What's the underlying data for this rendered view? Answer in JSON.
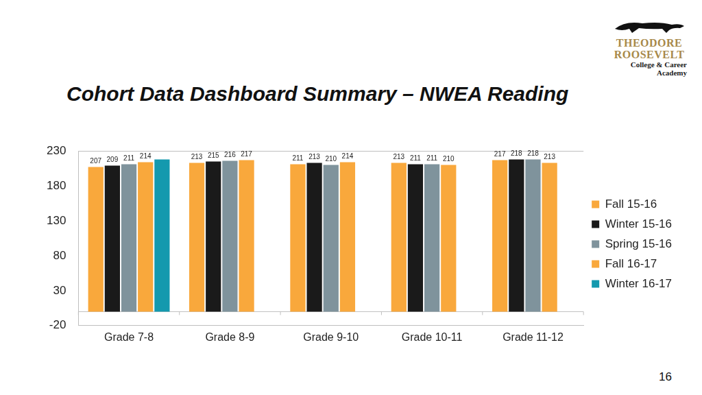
{
  "header": {
    "logo": [
      "THEODORE",
      "ROOSEVELT",
      "College & Career",
      "Academy"
    ]
  },
  "page_number": 16,
  "chart_data": {
    "type": "bar",
    "title": "Cohort Data Dashboard Summary – NWEA Reading",
    "categories": [
      "Grade 7-8",
      "Grade 8-9",
      "Grade 9-10",
      "Grade 10-11",
      "Grade 11-12"
    ],
    "series": [
      {
        "name": "Fall 15-16",
        "color": "#f9a83c",
        "values": [
          207,
          213,
          211,
          213,
          217
        ]
      },
      {
        "name": "Winter 15-16",
        "color": "#1a1a1a",
        "values": [
          209,
          215,
          213,
          211,
          218
        ]
      },
      {
        "name": "Spring 15-16",
        "color": "#7f939c",
        "values": [
          211,
          216,
          210,
          211,
          218
        ]
      },
      {
        "name": "Fall 16-17",
        "color": "#f9a83c",
        "values": [
          214,
          217,
          214,
          210,
          213
        ]
      },
      {
        "name": "Winter 16-17",
        "color": "#1499ae",
        "values": [
          218,
          null,
          null,
          null,
          null
        ],
        "value_labels": [
          null,
          null,
          null,
          null,
          null
        ]
      }
    ],
    "ylim": [
      -20,
      230
    ],
    "yticks": [
      -20,
      30,
      80,
      130,
      180,
      230
    ],
    "grid": false,
    "legend": "right",
    "data_labels": true
  }
}
